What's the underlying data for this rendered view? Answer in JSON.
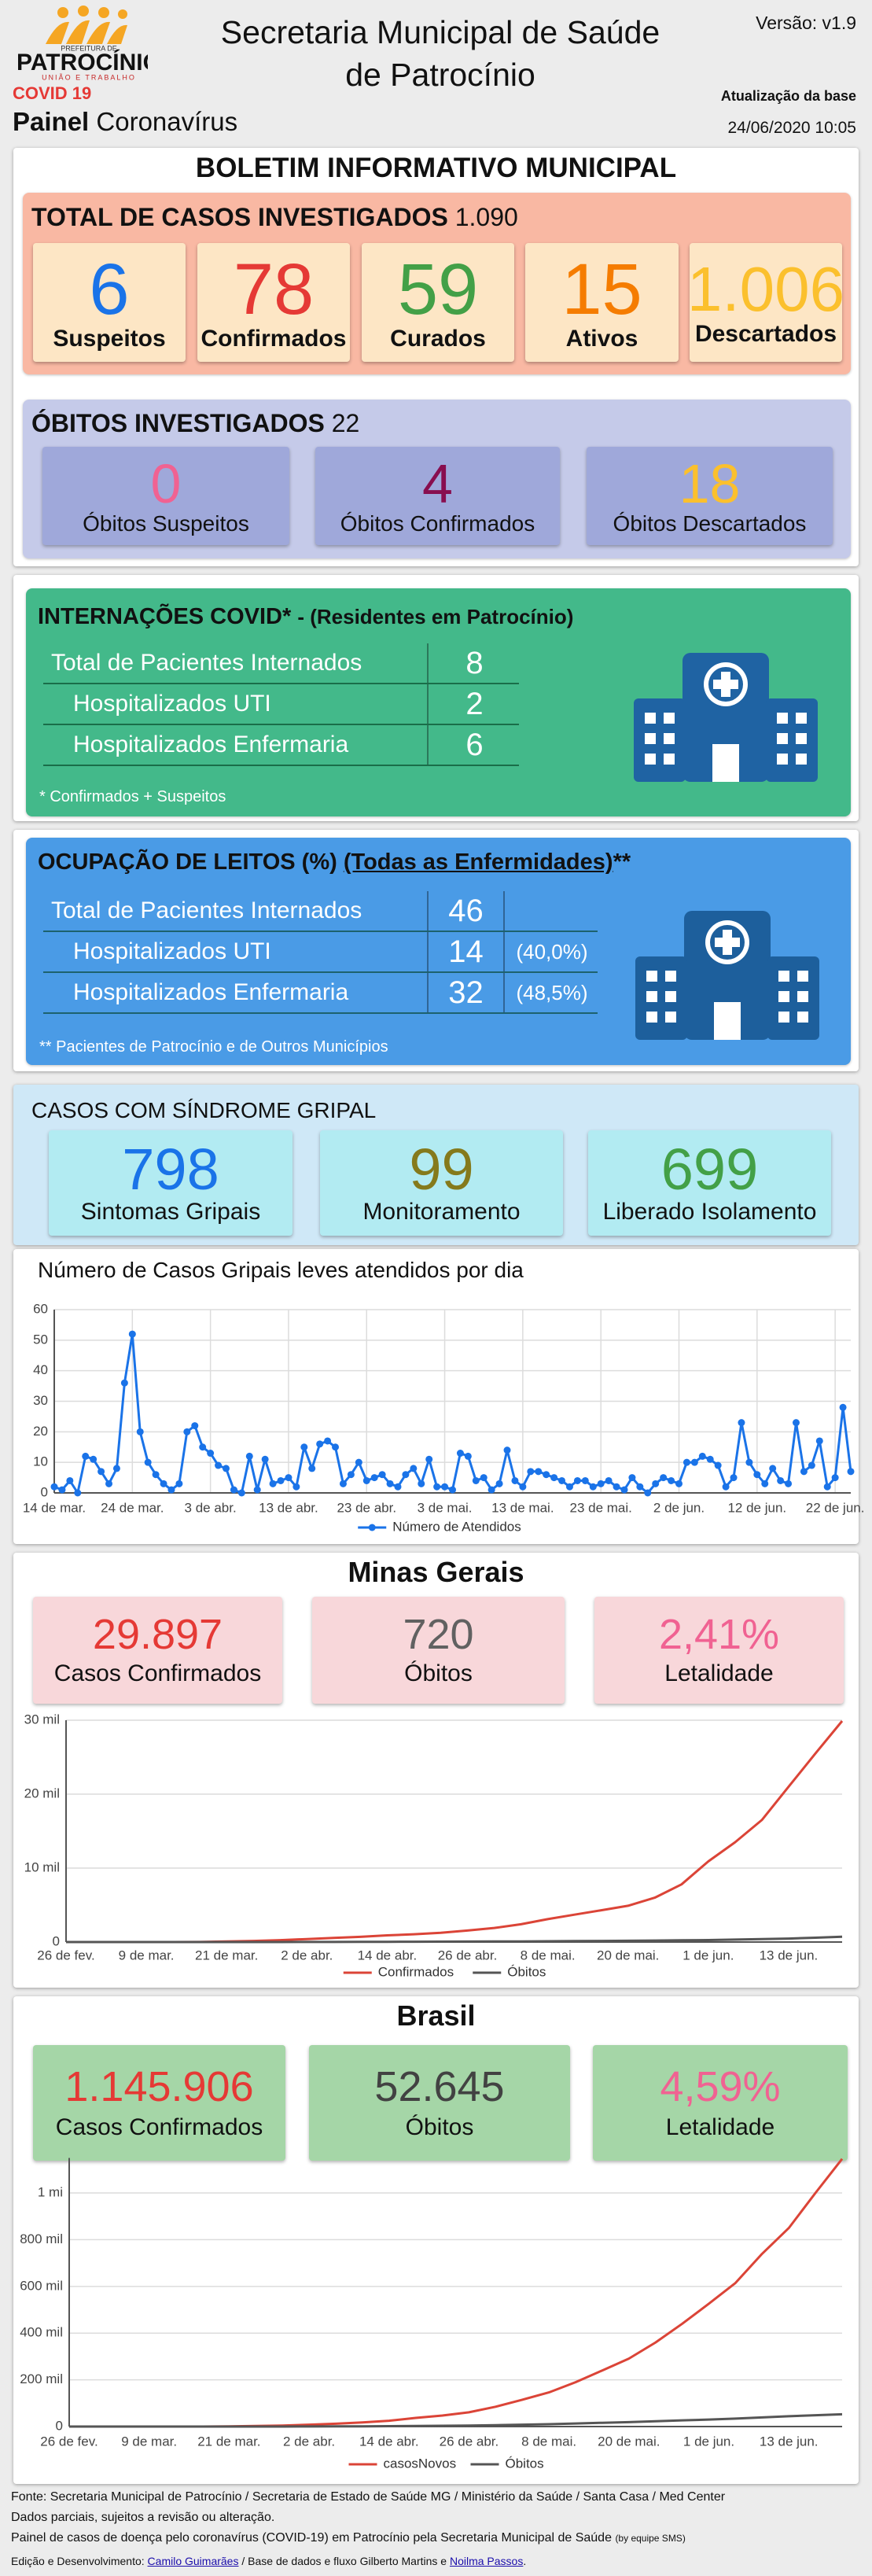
{
  "header": {
    "logo_top": "PREFEITURA DE",
    "logo_name": "PATROCÍNIO",
    "logo_motto": "UNIÃO E TRABALHO",
    "covid": "COVID 19",
    "painel": "Painel",
    "painel_sub": "Coronavírus",
    "title_line1": "Secretaria Municipal de Saúde",
    "title_line2": "de Patrocínio",
    "version": "Versão: v1.9",
    "update_label": "Atualização da base",
    "update_date": "24/06/2020 10:05"
  },
  "boletim": {
    "title": "BOLETIM INFORMATIVO MUNICIPAL",
    "total": {
      "label": "TOTAL DE CASOS INVESTIGADOS",
      "value": "1.090",
      "cards": [
        {
          "value": "6",
          "label": "Suspeitos"
        },
        {
          "value": "78",
          "label": "Confirmados"
        },
        {
          "value": "59",
          "label": "Curados"
        },
        {
          "value": "15",
          "label": "Ativos"
        },
        {
          "value": "1.006",
          "label": "Descartados"
        }
      ]
    },
    "obitos": {
      "label": "ÓBITOS INVESTIGADOS",
      "value": "22",
      "cards": [
        {
          "value": "0",
          "label": "Óbitos Suspeitos"
        },
        {
          "value": "4",
          "label": "Óbitos Confirmados"
        },
        {
          "value": "18",
          "label": "Óbitos Descartados"
        }
      ]
    }
  },
  "internacoes": {
    "title": "INTERNAÇÕES COVID*",
    "subtitle": "- (Residentes em Patrocínio)",
    "rows": [
      [
        "Total de Pacientes Internados",
        "8"
      ],
      [
        "Hospitalizados UTI",
        "2"
      ],
      [
        "Hospitalizados Enfermaria",
        "6"
      ]
    ],
    "note": "* Confirmados + Suspeitos"
  },
  "ocupacao": {
    "title": "OCUPAÇÃO DE LEITOS (%)",
    "link": "(Todas as Enfermidades)",
    "mark": "**",
    "rows": [
      [
        "Total de Pacientes Internados",
        "46"
      ],
      [
        "Hospitalizados UTI",
        "14",
        "(40,0%)"
      ],
      [
        "Hospitalizados Enfermaria",
        "32",
        "(48,5%)"
      ]
    ],
    "note": "** Pacientes de Patrocínio e de Outros Municípios"
  },
  "sindrome": {
    "title": "CASOS COM SÍNDROME GRIPAL",
    "cards": [
      {
        "value": "798",
        "label": "Sintomas Gripais"
      },
      {
        "value": "99",
        "label": "Monitoramento"
      },
      {
        "value": "699",
        "label": "Liberado Isolamento"
      }
    ]
  },
  "minas": {
    "title": "Minas Gerais",
    "cards": [
      {
        "value": "29.897",
        "label": "Casos Confirmados"
      },
      {
        "value": "720",
        "label": "Óbitos"
      },
      {
        "value": "2,41%",
        "label": "Letalidade"
      }
    ]
  },
  "brasil": {
    "title": "Brasil",
    "cards": [
      {
        "value": "1.145.906",
        "label": "Casos Confirmados"
      },
      {
        "value": "52.645",
        "label": "Óbitos"
      },
      {
        "value": "4,59%",
        "label": "Letalidade"
      }
    ]
  },
  "chart_data": [
    {
      "type": "line",
      "title": "Número de Casos Gripais leves atendidos por dia",
      "categories": [
        "14 de mar.",
        null,
        null,
        null,
        null,
        null,
        null,
        null,
        null,
        null,
        "24 de mar.",
        null,
        null,
        null,
        null,
        null,
        null,
        null,
        null,
        null,
        "3 de abr.",
        null,
        null,
        null,
        null,
        null,
        null,
        null,
        null,
        null,
        "13 de abr.",
        null,
        null,
        null,
        null,
        null,
        null,
        null,
        null,
        null,
        "23 de abr.",
        null,
        null,
        null,
        null,
        null,
        null,
        null,
        null,
        null,
        "3 de mai.",
        null,
        null,
        null,
        null,
        null,
        null,
        null,
        null,
        null,
        "13 de mai.",
        null,
        null,
        null,
        null,
        null,
        null,
        null,
        null,
        null,
        "23 de mai.",
        null,
        null,
        null,
        null,
        null,
        null,
        null,
        null,
        null,
        "2 de jun.",
        null,
        null,
        null,
        null,
        null,
        null,
        null,
        null,
        null,
        "12 de jun.",
        null,
        null,
        null,
        null,
        null,
        null,
        null,
        null,
        null,
        "22 de jun.",
        null,
        null
      ],
      "series": [
        {
          "name": "Número de Atendidos",
          "color": "#1a73e8",
          "values": [
            2,
            1,
            4,
            0,
            12,
            11,
            7,
            3,
            8,
            36,
            52,
            20,
            10,
            6,
            3,
            1,
            3,
            20,
            22,
            15,
            13,
            9,
            8,
            1,
            0,
            12,
            1,
            11,
            3,
            4,
            5,
            2,
            15,
            8,
            16,
            17,
            15,
            3,
            6,
            10,
            4,
            5,
            6,
            3,
            2,
            6,
            8,
            3,
            11,
            2,
            2,
            1,
            13,
            12,
            4,
            5,
            1,
            3,
            14,
            4,
            2,
            7,
            7,
            6,
            5,
            4,
            2,
            4,
            4,
            2,
            3,
            4,
            2,
            1,
            5,
            2,
            0,
            3,
            5,
            4,
            3,
            10,
            10,
            12,
            11,
            9,
            2,
            5,
            23,
            10,
            6,
            3,
            8,
            4,
            3,
            23,
            7,
            9,
            17,
            2,
            5,
            28,
            7
          ]
        }
      ],
      "ylim": [
        0,
        60
      ],
      "yticks": [
        0,
        10,
        20,
        30,
        40,
        50,
        60
      ],
      "grid": true,
      "xgrid": true,
      "markers": true,
      "legend": "bottom"
    },
    {
      "type": "line",
      "categories": [
        "26 de fev.",
        null,
        null,
        "9 de mar.",
        null,
        null,
        "21 de mar.",
        null,
        null,
        "2 de abr.",
        null,
        null,
        "14 de abr.",
        null,
        null,
        "26 de abr.",
        null,
        null,
        "8 de mai.",
        null,
        null,
        "20 de mai.",
        null,
        null,
        "1 de jun.",
        null,
        null,
        "13 de jun.",
        null,
        null
      ],
      "series": [
        {
          "name": "Confirmados",
          "color": "#db4437",
          "values": [
            0,
            0,
            0,
            0,
            1,
            10,
            80,
            150,
            260,
            400,
            560,
            700,
            900,
            1050,
            1250,
            1550,
            1900,
            2400,
            3100,
            3700,
            4300,
            4900,
            6000,
            7800,
            10900,
            13500,
            16500,
            21000,
            25500,
            29897
          ]
        },
        {
          "name": "Óbitos",
          "color": "#555555",
          "values": [
            0,
            0,
            0,
            0,
            0,
            0,
            0,
            1,
            3,
            8,
            14,
            20,
            30,
            38,
            48,
            60,
            75,
            90,
            110,
            125,
            145,
            170,
            200,
            235,
            270,
            330,
            400,
            470,
            590,
            720
          ]
        }
      ],
      "ylim": [
        0,
        30000
      ],
      "yticks": [
        0,
        {
          "value": 10000,
          "label": "10 mil"
        },
        {
          "value": 20000,
          "label": "20 mil"
        },
        {
          "value": 30000,
          "label": "30 mil"
        }
      ],
      "grid": true,
      "legend": "bottom"
    },
    {
      "type": "line",
      "categories": [
        "26 de fev.",
        null,
        null,
        "9 de mar.",
        null,
        null,
        "21 de mar.",
        null,
        null,
        "2 de abr.",
        null,
        null,
        "14 de abr.",
        null,
        null,
        "26 de abr.",
        null,
        null,
        "8 de mai.",
        null,
        null,
        "20 de mai.",
        null,
        null,
        "1 de jun.",
        null,
        null,
        "13 de jun.",
        null,
        null
      ],
      "series": [
        {
          "name": "casosNovos",
          "color": "#db4437",
          "values": [
            0,
            0,
            0,
            0,
            1,
            10,
            1100,
            2400,
            4300,
            8000,
            12000,
            18000,
            25000,
            37000,
            47000,
            61000,
            85000,
            115000,
            146000,
            190000,
            240000,
            291000,
            360000,
            440000,
            526000,
            615000,
            740000,
            850000,
            1000000,
            1145906
          ]
        },
        {
          "name": "Óbitos",
          "color": "#555555",
          "values": [
            0,
            0,
            0,
            0,
            0,
            0,
            10,
            50,
            130,
            300,
            600,
            1000,
            1700,
            2500,
            3300,
            4200,
            6000,
            8000,
            10000,
            13000,
            16000,
            19000,
            23000,
            26500,
            30000,
            34000,
            39000,
            44000,
            48500,
            52645
          ]
        }
      ],
      "ylim": [
        0,
        1150000
      ],
      "yticks": [
        0,
        {
          "value": 200000,
          "label": "200 mil"
        },
        {
          "value": 400000,
          "label": "400 mil"
        },
        {
          "value": 600000,
          "label": "600 mil"
        },
        {
          "value": 800000,
          "label": "800 mil"
        },
        {
          "value": 1000000,
          "label": "1 mi"
        }
      ],
      "grid": true,
      "legend": "bottom"
    }
  ],
  "footer": {
    "source": "Fonte: Secretaria Municipal de Patrocínio / Secretaria de Estado de Saúde MG / Ministério da Saúde / Santa Casa / Med Center",
    "partial": "Dados parciais, sujeitos a revisão ou alteração.",
    "panel": "Painel de casos de doença pelo coronavírus (COVID-19) em Patrocínio pela Secretaria Municipal de Saúde",
    "team": "(by equipe SMS)",
    "edit": "Edição e Desenvolvimento:",
    "dev": "Camilo Guimarães",
    "base": "/ Base de dados e fluxo Gilberto Martins e",
    "dev2": "Noilma Passos",
    "end": "."
  }
}
